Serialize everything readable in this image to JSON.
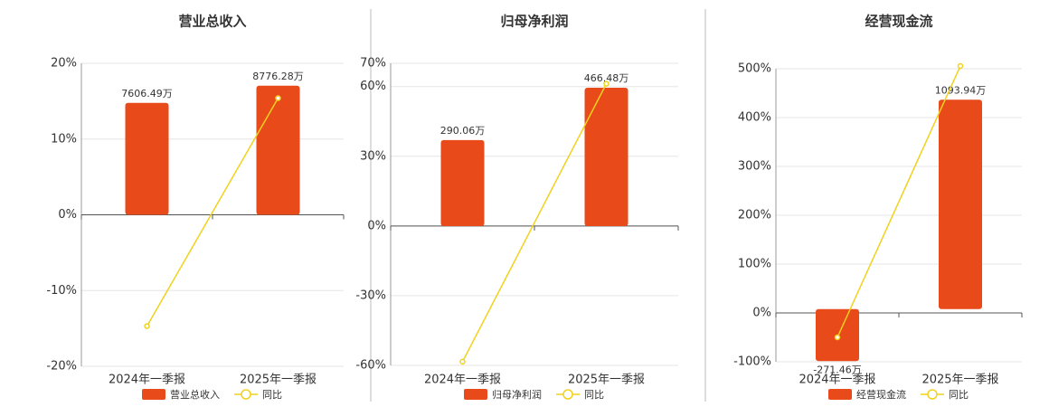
{
  "chart_data": [
    {
      "type": "bar",
      "title": "营业总收入",
      "categories": [
        "2024年一季报",
        "2025年一季报"
      ],
      "series": [
        {
          "name": "营业总收入",
          "type": "bar",
          "color": "#e84a1a",
          "axis": "y2",
          "values": [
            7606.49,
            8776.28
          ],
          "value_labels": [
            "7606.49万",
            "8776.28万"
          ]
        },
        {
          "name": "同比",
          "type": "line",
          "color": "#f0d21e",
          "values": [
            -14.7,
            15.4
          ]
        }
      ],
      "ylim": [
        -20,
        20
      ],
      "yticks": [
        {
          "value": -20,
          "label": "-20%"
        },
        {
          "value": -10,
          "label": "-10%"
        },
        {
          "value": 0,
          "label": "0%"
        },
        {
          "value": 10,
          "label": "10%"
        },
        {
          "value": 20,
          "label": "20%"
        }
      ],
      "y2lim": [
        -10300,
        10300
      ],
      "grid": true
    },
    {
      "type": "bar",
      "title": "归母净利润",
      "categories": [
        "2024年一季报",
        "2025年一季报"
      ],
      "series": [
        {
          "name": "归母净利润",
          "type": "bar",
          "color": "#e84a1a",
          "axis": "y2",
          "values": [
            290.06,
            466.48
          ],
          "value_labels": [
            "290.06万",
            "466.48万"
          ]
        },
        {
          "name": "同比",
          "type": "line",
          "color": "#f0d21e",
          "values": [
            -58.4,
            61.2
          ]
        }
      ],
      "ylim": [
        -60,
        70
      ],
      "yticks": [
        {
          "value": -60,
          "label": "-60%"
        },
        {
          "value": -30,
          "label": "-30%"
        },
        {
          "value": 0,
          "label": "0%"
        },
        {
          "value": 30,
          "label": "30%"
        },
        {
          "value": 60,
          "label": "60%"
        },
        {
          "value": 70,
          "label": "70%"
        }
      ],
      "y2lim": [
        -470,
        549
      ],
      "grid": true
    },
    {
      "type": "bar",
      "title": "经营现金流",
      "categories": [
        "2024年一季报",
        "2025年一季报"
      ],
      "series": [
        {
          "name": "经营现金流",
          "type": "bar",
          "color": "#e84a1a",
          "axis": "y2",
          "values": [
            -271.46,
            1093.94
          ],
          "value_labels": [
            "-271.46万",
            "1093.94万"
          ]
        },
        {
          "name": "同比",
          "type": "line",
          "color": "#f0d21e",
          "values": [
            -50,
            505.6
          ]
        }
      ],
      "ylim": [
        -100,
        500
      ],
      "yticks": [
        {
          "value": -100,
          "label": "-100%"
        },
        {
          "value": 0,
          "label": "0%"
        },
        {
          "value": 100,
          "label": "100%"
        },
        {
          "value": 200,
          "label": "200%"
        },
        {
          "value": 300,
          "label": "300%"
        },
        {
          "value": 400,
          "label": "400%"
        },
        {
          "value": 500,
          "label": "500%"
        }
      ],
      "y2lim": [
        -275,
        1256
      ],
      "grid": true
    }
  ]
}
